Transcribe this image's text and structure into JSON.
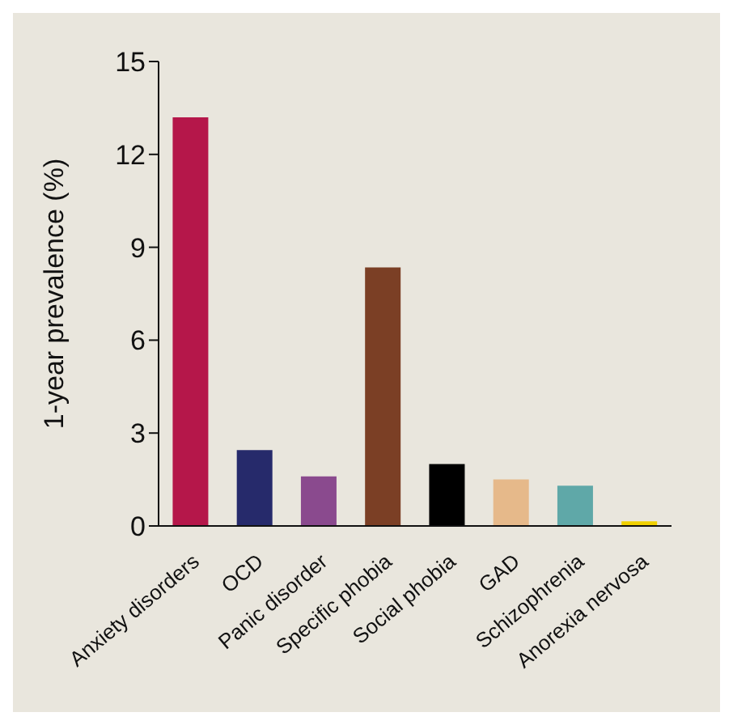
{
  "chart_data": {
    "type": "bar",
    "ylabel": "1-year prevalence (%)",
    "categories": [
      "Anxiety disorders",
      "OCD",
      "Panic disorder",
      "Specific phobia",
      "Social phobia",
      "GAD",
      "Schizophrenia",
      "Anorexia nervosa"
    ],
    "values": [
      13.2,
      2.45,
      1.6,
      8.35,
      2.0,
      1.5,
      1.3,
      0.15
    ],
    "colors": [
      "#b5174a",
      "#262a6b",
      "#8a4a8e",
      "#7b3f25",
      "#000000",
      "#e6b98a",
      "#5fa8a8",
      "#f0d000"
    ],
    "ylim": [
      0,
      15
    ],
    "yticks": [
      0,
      3,
      6,
      9,
      12,
      15
    ],
    "grid": false,
    "legend": false
  }
}
